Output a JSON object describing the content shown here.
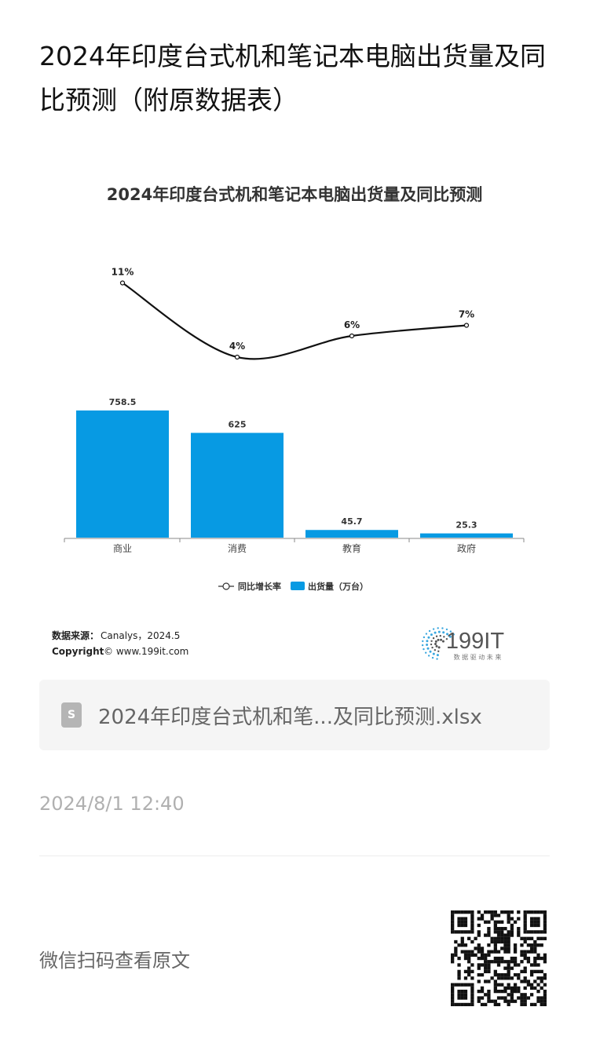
{
  "article": {
    "title": "2024年印度台式机和笔记本电脑出货量及同比预测（附原数据表）"
  },
  "chart_data": {
    "type": "bar",
    "title": "2024年印度台式机和笔记本电脑出货量及同比预测",
    "categories": [
      "商业",
      "消费",
      "教育",
      "政府"
    ],
    "series": [
      {
        "name": "出货量（万台）",
        "type": "bar",
        "values": [
          758.5,
          625,
          45.7,
          25.3
        ],
        "labels": [
          "758.5",
          "625",
          "45.7",
          "25.3"
        ],
        "color": "#079ae3"
      },
      {
        "name": "同比增长率",
        "type": "line",
        "values": [
          11,
          4,
          6,
          7
        ],
        "labels": [
          "11%",
          "4%",
          "6%",
          "7%"
        ],
        "color": "#111111"
      }
    ],
    "legend_position": "bottom",
    "grid": false,
    "source_label": "数据来源：",
    "source_value": "Canalys，2024.5",
    "copyright_label": "Copyright",
    "copyright_value": "© www.199it.com",
    "logo_text": "199IT",
    "logo_subtitle": "数 据 驱 动 未 来"
  },
  "file": {
    "icon": "spreadsheet-file-icon",
    "icon_letter": "S",
    "name": "2024年印度台式机和笔...及同比预测.xlsx"
  },
  "meta": {
    "publish_time": "2024/8/1 12:40"
  },
  "footer": {
    "qr_hint": "微信扫码查看原文",
    "qr_icon": "qr-code-icon"
  }
}
